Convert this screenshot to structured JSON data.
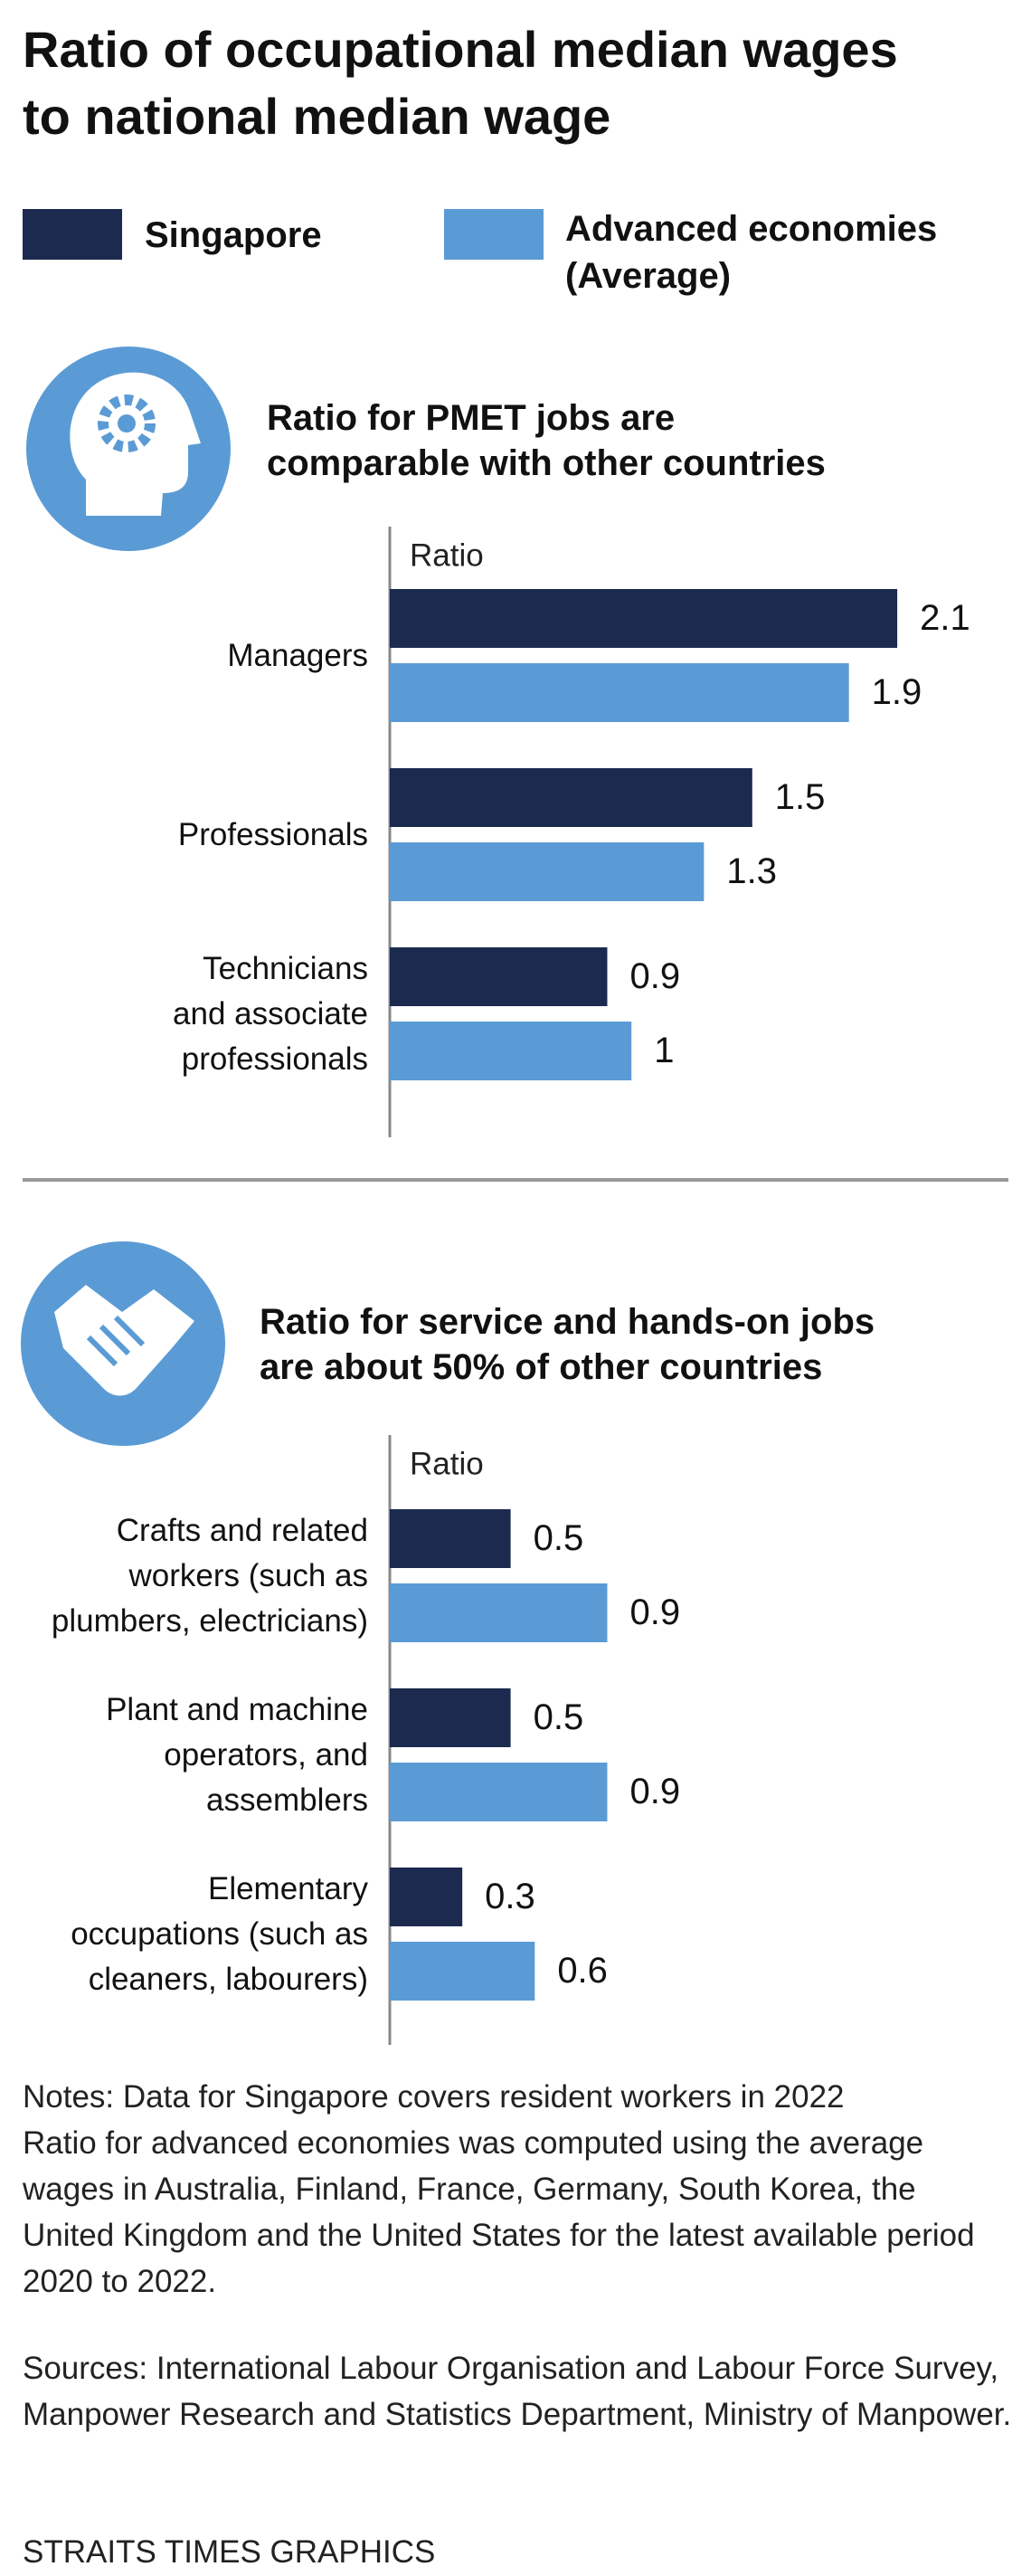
{
  "title": "Ratio of occupational median wages\nto national median wage",
  "chart_data": [
    {
      "type": "bar",
      "orientation": "horizontal",
      "title": "Ratio for PMET jobs are\ncomparable with other countries",
      "x_label": "Ratio",
      "categories": [
        "Managers",
        "Professionals",
        "Technicians\nand associate\nprofessionals"
      ],
      "series": [
        {
          "name": "Singapore",
          "color": "#1b2a4e",
          "values": [
            2.1,
            1.5,
            0.9
          ]
        },
        {
          "name": "Advanced economies\n(Average)",
          "color": "#5b9bd5",
          "values": [
            1.9,
            1.3,
            1
          ]
        }
      ],
      "xlim": [
        0,
        2.5
      ]
    },
    {
      "type": "bar",
      "orientation": "horizontal",
      "title": "Ratio for service and hands-on jobs\nare about 50% of other countries",
      "x_label": "Ratio",
      "categories": [
        "Crafts and related\nworkers (such as\nplumbers, electricians)",
        "Plant and machine\noperators, and\nassemblers",
        "Elementary\noccupations (such as\ncleaners, labourers)"
      ],
      "series": [
        {
          "name": "Singapore",
          "color": "#1b2a4e",
          "values": [
            0.5,
            0.5,
            0.3
          ]
        },
        {
          "name": "Advanced economies\n(Average)",
          "color": "#5b9bd5",
          "values": [
            0.9,
            0.9,
            0.6
          ]
        }
      ],
      "xlim": [
        0,
        2.5
      ]
    }
  ],
  "notes": "Notes: Data for Singapore covers resident workers in 2022\nRatio for advanced economies was computed using the average wages in Australia, Finland, France, Germany, South Korea, the United Kingdom and the United States for the latest available period 2020 to 2022.",
  "sources": "Sources: International Labour Organisation and Labour Force Survey, Manpower Research and Statistics Department, Ministry of Manpower.",
  "credit": "STRAITS TIMES GRAPHICS"
}
